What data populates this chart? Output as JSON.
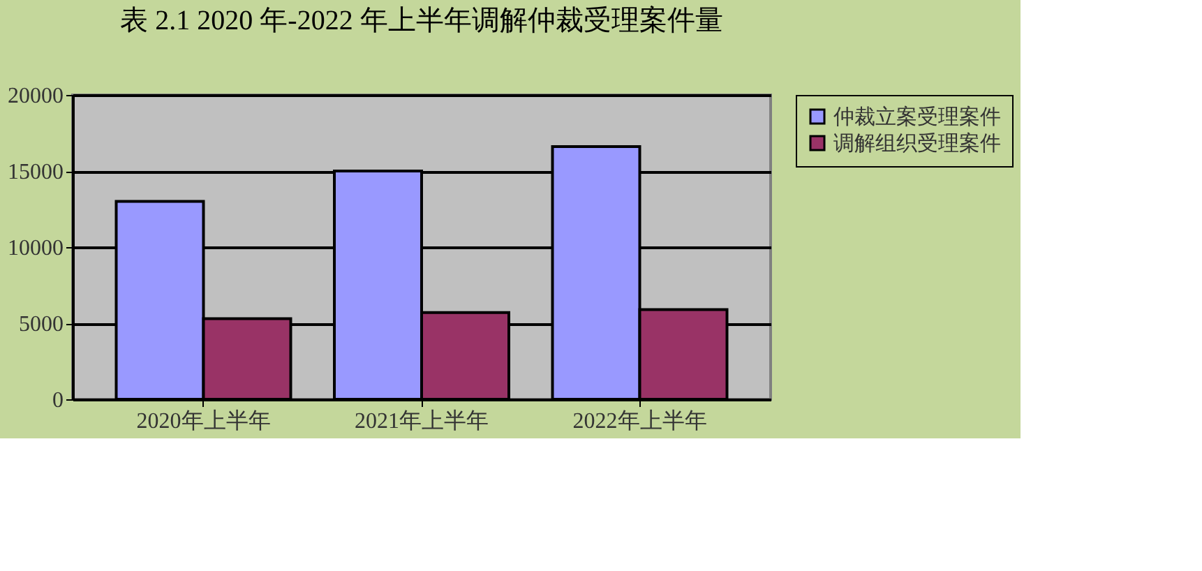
{
  "chart_data": {
    "type": "bar",
    "title": "表 2.1 2020 年-2022 年上半年调解仲裁受理案件量",
    "categories": [
      "2020年上半年",
      "2021年上半年",
      "2022年上半年"
    ],
    "series": [
      {
        "name": "仲裁立案受理案件",
        "color": "#9999ff",
        "values": [
          13000,
          15000,
          16600
        ]
      },
      {
        "name": "调解组织受理案件",
        "color": "#993366",
        "values": [
          5300,
          5700,
          5900
        ]
      }
    ],
    "ylim": [
      0,
      20000
    ],
    "yticks": [
      0,
      5000,
      10000,
      15000,
      20000
    ],
    "grid": "y",
    "legend": "right"
  }
}
